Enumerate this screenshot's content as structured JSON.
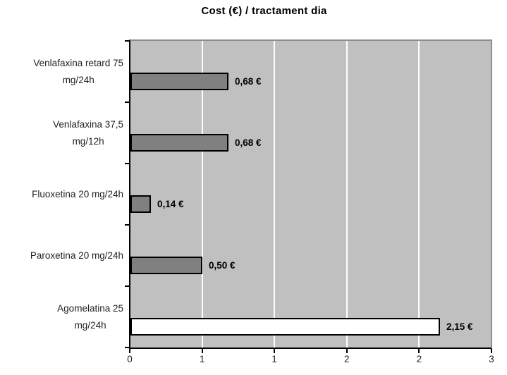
{
  "title": "Cost (€) / tractament dia",
  "chart_data": {
    "type": "bar",
    "orientation": "horizontal",
    "title": "Cost (€) / tractament dia",
    "categories": [
      "Venlafaxina retard 75\nmg/24h",
      "Venlafaxina 37,5\nmg/12h",
      "Fluoxetina 20 mg/24h",
      "Paroxetina 20 mg/24h",
      "Agomelatina 25\nmg/24h"
    ],
    "values": [
      0.68,
      0.68,
      0.14,
      0.5,
      2.15
    ],
    "data_labels": [
      "0,68 €",
      "0,68 €",
      "0,14 €",
      "0,50 €",
      "2,15 €"
    ],
    "bar_colors": [
      "#808080",
      "#808080",
      "#808080",
      "#808080",
      "#ffffff"
    ],
    "bar_border_color": "#000000",
    "xlim": [
      0,
      2.5
    ],
    "x_tick_values": [
      0,
      0.5,
      1,
      1.5,
      2,
      2.5
    ],
    "x_tick_labels": [
      "0",
      "1",
      "1",
      "2",
      "2",
      "3"
    ],
    "grid": true,
    "plot_bg": "#c0c0c0",
    "gridline_color": "#ffffff",
    "legend": "none",
    "xlabel": "",
    "ylabel": ""
  }
}
